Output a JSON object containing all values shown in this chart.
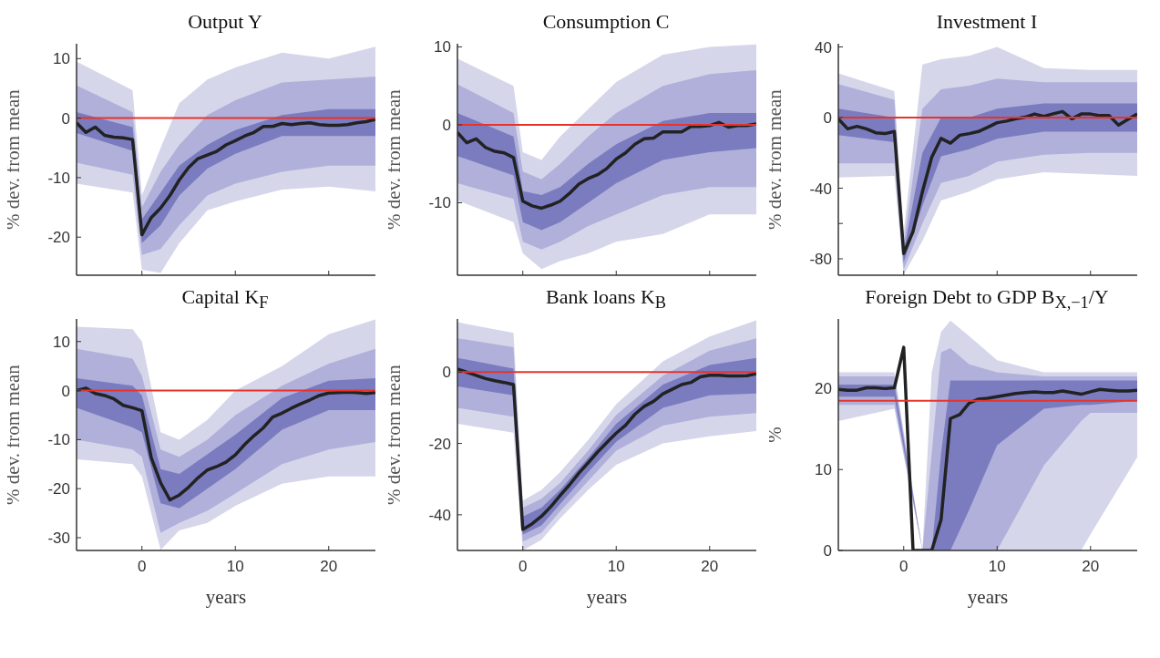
{
  "chart_data": [
    {
      "type": "line",
      "title": "Output Y",
      "ylabel": "% dev. from mean",
      "xlim": [
        -7,
        25
      ],
      "xticks": [
        0,
        10,
        20
      ],
      "ylim": [
        -26.4,
        12.5
      ],
      "yticks": [
        -20,
        -10,
        0,
        10
      ],
      "tick_labels": "y",
      "ref_lines": [
        {
          "axis": "y",
          "value": 0,
          "color": "#e8332a"
        }
      ],
      "x": [
        -7,
        -6,
        -5,
        -4,
        -3,
        -2,
        -1,
        0,
        1,
        2,
        3,
        4,
        5,
        6,
        7,
        8,
        9,
        10,
        11,
        12,
        13,
        14,
        15,
        16,
        17,
        18,
        19,
        20,
        21,
        22,
        23,
        24,
        25
      ],
      "series": [
        {
          "type": "area",
          "color": "#d6d6eb",
          "x": [
            -7,
            -1,
            0,
            2,
            4,
            7,
            10,
            15,
            20,
            25
          ],
          "values": [
            null,
            null,
            null,
            null,
            null,
            null,
            null,
            null,
            null,
            null
          ],
          "lower": [
            -11,
            -12.5,
            -25.5,
            -26,
            -21,
            -15.5,
            -14,
            -12,
            -11.5,
            -12.3
          ],
          "upper": [
            9.5,
            4.7,
            -13,
            -5,
            2.5,
            6.5,
            8.5,
            11,
            10,
            12
          ]
        },
        {
          "type": "area",
          "color": "#b0b0da",
          "x": [
            -7,
            -1,
            0,
            2,
            4,
            7,
            10,
            15,
            20,
            25
          ],
          "values": [
            null,
            null,
            null,
            null,
            null,
            null,
            null,
            null,
            null,
            null
          ],
          "lower": [
            -7.5,
            -9.5,
            -23,
            -22,
            -18,
            -13,
            -11,
            -9,
            -8,
            -8
          ],
          "upper": [
            5.5,
            1,
            -15,
            -9,
            -4.5,
            0.5,
            3,
            6,
            6.5,
            7
          ]
        },
        {
          "type": "area",
          "color": "#7a7cbf",
          "x": [
            -7,
            -1,
            0,
            2,
            4,
            7,
            10,
            15,
            20,
            25
          ],
          "values": [
            null,
            null,
            null,
            null,
            null,
            null,
            null,
            null,
            null,
            null
          ],
          "lower": [
            -2.5,
            -5.5,
            -21,
            -18,
            -13,
            -8.5,
            -6,
            -3,
            -3,
            -3
          ],
          "upper": [
            1,
            -1.5,
            -17,
            -12.5,
            -8,
            -4.5,
            -2,
            0.5,
            1.5,
            1.5
          ]
        },
        {
          "type": "line",
          "color": "#222222",
          "values": [
            -0.8,
            -2.4,
            -1.5,
            -2.9,
            -3.2,
            -3.3,
            -3.6,
            -19.6,
            -16.7,
            -15.1,
            -13,
            -10.4,
            -8.3,
            -6.8,
            -6.2,
            -5.6,
            -4.5,
            -3.8,
            -3,
            -2.4,
            -1.4,
            -1.4,
            -0.9,
            -1.1,
            -0.9,
            -0.8,
            -1.1,
            -1.2,
            -1.2,
            -1.1,
            -0.8,
            -0.6,
            -0.2
          ]
        }
      ]
    },
    {
      "type": "line",
      "title": "Consumption C",
      "ylabel": "% dev. from mean",
      "xlim": [
        -7,
        25
      ],
      "xticks": [
        0,
        10,
        20
      ],
      "ylim": [
        -19.3,
        10.4
      ],
      "yticks": [
        -10,
        0,
        10
      ],
      "tick_labels": "y",
      "ref_lines": [
        {
          "axis": "y",
          "value": 0,
          "color": "#e8332a"
        }
      ],
      "x": [
        -7,
        -6,
        -5,
        -4,
        -3,
        -2,
        -1,
        0,
        1,
        2,
        3,
        4,
        5,
        6,
        7,
        8,
        9,
        10,
        11,
        12,
        13,
        14,
        15,
        16,
        17,
        18,
        19,
        20,
        21,
        22,
        23,
        24,
        25
      ],
      "series": [
        {
          "type": "area",
          "color": "#d6d6eb",
          "x": [
            -7,
            -1,
            0,
            2,
            4,
            7,
            10,
            15,
            20,
            25
          ],
          "values": [
            null,
            null,
            null,
            null,
            null,
            null,
            null,
            null,
            null,
            null
          ],
          "lower": [
            -9.7,
            -12.5,
            -16.5,
            -18.5,
            -17.5,
            -16.5,
            -15,
            -14,
            -11.5,
            -11.5
          ],
          "upper": [
            8.5,
            5,
            -3.5,
            -4.5,
            -1.5,
            2,
            5.5,
            9,
            10,
            10.3
          ]
        },
        {
          "type": "area",
          "color": "#b0b0da",
          "x": [
            -7,
            -1,
            0,
            2,
            4,
            7,
            10,
            15,
            20,
            25
          ],
          "values": [
            null,
            null,
            null,
            null,
            null,
            null,
            null,
            null,
            null,
            null
          ],
          "lower": [
            -7.5,
            -9.5,
            -15,
            -16,
            -15,
            -13,
            -11.5,
            -9,
            -8,
            -8
          ],
          "upper": [
            5.2,
            1.5,
            -6,
            -7,
            -5,
            -1.5,
            1.5,
            5,
            6.5,
            7
          ]
        },
        {
          "type": "area",
          "color": "#7a7cbf",
          "x": [
            -7,
            -1,
            0,
            2,
            4,
            7,
            10,
            15,
            20,
            25
          ],
          "values": [
            null,
            null,
            null,
            null,
            null,
            null,
            null,
            null,
            null,
            null
          ],
          "lower": [
            -4,
            -6.5,
            -12.5,
            -13.5,
            -12.5,
            -10,
            -7.5,
            -4.5,
            -3.5,
            -3
          ],
          "upper": [
            1.5,
            -1.5,
            -8.5,
            -9,
            -8,
            -5,
            -2.5,
            0.5,
            1.5,
            1.5
          ]
        },
        {
          "type": "line",
          "color": "#222222",
          "values": [
            -1,
            -2.3,
            -1.8,
            -2.9,
            -3.4,
            -3.6,
            -4.2,
            -9.8,
            -10.4,
            -10.7,
            -10.3,
            -9.8,
            -8.8,
            -7.6,
            -6.9,
            -6.4,
            -5.6,
            -4.4,
            -3.6,
            -2.5,
            -1.8,
            -1.7,
            -0.9,
            -0.9,
            -0.9,
            -0.2,
            -0.2,
            -0.1,
            0.3,
            -0.3,
            -0.1,
            -0.1,
            0.1
          ]
        }
      ]
    },
    {
      "type": "line",
      "title": "Investment I",
      "ylabel": "% dev. from mean",
      "xlim": [
        -7,
        25
      ],
      "xticks": [
        0,
        10,
        20
      ],
      "ylim": [
        -89.3,
        41.8
      ],
      "yticks": [
        -80,
        {
          "value": -60,
          "label": null
        },
        -40,
        0,
        40
      ],
      "tick_labels": "y",
      "ref_lines": [
        {
          "axis": "y",
          "value": 0,
          "color": "#e8332a"
        }
      ],
      "x": [
        -7,
        -6,
        -5,
        -4,
        -3,
        -2,
        -1,
        0,
        1,
        2,
        3,
        4,
        5,
        6,
        7,
        8,
        9,
        10,
        11,
        12,
        13,
        14,
        15,
        16,
        17,
        18,
        19,
        20,
        21,
        22,
        23,
        24,
        25
      ],
      "series": [
        {
          "type": "area",
          "color": "#d6d6eb",
          "x": [
            -7,
            -1,
            0,
            2,
            4,
            7,
            10,
            15,
            20,
            25
          ],
          "values": [
            null,
            null,
            null,
            null,
            null,
            null,
            null,
            null,
            null,
            null
          ],
          "lower": [
            -34,
            -33,
            -89,
            -70,
            -47,
            -42,
            -35,
            -31,
            -32,
            -33
          ],
          "upper": [
            25,
            15,
            -65,
            30,
            33,
            35,
            40,
            28,
            27,
            27
          ]
        },
        {
          "type": "area",
          "color": "#b0b0da",
          "x": [
            -7,
            -1,
            0,
            2,
            4,
            7,
            10,
            15,
            20,
            25
          ],
          "values": [
            null,
            null,
            null,
            null,
            null,
            null,
            null,
            null,
            null,
            null
          ],
          "lower": [
            -26,
            -26,
            -86,
            -60,
            -37,
            -33,
            -25,
            -21,
            -20,
            -20
          ],
          "upper": [
            19,
            10,
            -72,
            5,
            16,
            18,
            22,
            20,
            20,
            20
          ]
        },
        {
          "type": "area",
          "color": "#7a7cbf",
          "x": [
            -7,
            -1,
            0,
            2,
            4,
            7,
            10,
            15,
            20,
            25
          ],
          "values": [
            null,
            null,
            null,
            null,
            null,
            null,
            null,
            null,
            null,
            null
          ],
          "lower": [
            -10,
            -14,
            -82,
            -50,
            -22,
            -18,
            -12,
            -8,
            -8,
            -8
          ],
          "upper": [
            5,
            0,
            -76,
            -20,
            0,
            0,
            5,
            8,
            8,
            8
          ]
        },
        {
          "type": "line",
          "color": "#222222",
          "values": [
            -0.7,
            -6.4,
            -5,
            -6.4,
            -8.6,
            -9.1,
            -7.9,
            -77,
            -64.5,
            -42,
            -22.5,
            -11.8,
            -14.5,
            -10,
            -9.1,
            -7.9,
            -5.5,
            -2.9,
            -2,
            -0.7,
            0.2,
            2,
            0.7,
            2.1,
            3.4,
            -0.7,
            2,
            2,
            1.1,
            1.1,
            -4.3,
            -1.1,
            2
          ]
        }
      ]
    },
    {
      "type": "line",
      "title": "Capital K$_{F}$",
      "xlabel": "years",
      "ylabel": "% dev. from mean",
      "xlim": [
        -7,
        25
      ],
      "xticks": [
        0,
        10,
        20
      ],
      "ylim": [
        -32.6,
        14.6
      ],
      "yticks": [
        -30,
        -20,
        -10,
        0,
        10
      ],
      "ref_lines": [
        {
          "axis": "y",
          "value": 0,
          "color": "#e8332a"
        }
      ],
      "x": [
        -7,
        -6,
        -5,
        -4,
        -3,
        -2,
        -1,
        0,
        1,
        2,
        3,
        4,
        5,
        6,
        7,
        8,
        9,
        10,
        11,
        12,
        13,
        14,
        15,
        16,
        17,
        18,
        19,
        20,
        21,
        22,
        23,
        24,
        25
      ],
      "series": [
        {
          "type": "area",
          "color": "#d6d6eb",
          "x": [
            -7,
            -1,
            0,
            2,
            4,
            7,
            10,
            15,
            20,
            25
          ],
          "values": [
            null,
            null,
            null,
            null,
            null,
            null,
            null,
            null,
            null,
            null
          ],
          "lower": [
            -14,
            -15,
            -17.5,
            -32.5,
            -28.5,
            -27,
            -23.5,
            -19,
            -17.5,
            -17.5
          ],
          "upper": [
            13,
            12.5,
            10,
            -8.5,
            -10,
            -6,
            0,
            5,
            11.5,
            14.5
          ]
        },
        {
          "type": "area",
          "color": "#b0b0da",
          "x": [
            -7,
            -1,
            0,
            2,
            4,
            7,
            10,
            15,
            20,
            25
          ],
          "values": [
            null,
            null,
            null,
            null,
            null,
            null,
            null,
            null,
            null,
            null
          ],
          "lower": [
            -10,
            -12,
            -13.5,
            -29,
            -27,
            -24.5,
            -21,
            -15,
            -12,
            -10.5
          ],
          "upper": [
            8.5,
            6.5,
            3,
            -12,
            -13.5,
            -10,
            -5,
            1,
            5.5,
            8.5
          ]
        },
        {
          "type": "area",
          "color": "#7a7cbf",
          "x": [
            -7,
            -1,
            0,
            2,
            4,
            7,
            10,
            15,
            20,
            25
          ],
          "values": [
            null,
            null,
            null,
            null,
            null,
            null,
            null,
            null,
            null,
            null
          ],
          "lower": [
            -3.5,
            -7.5,
            -8.5,
            -23,
            -24,
            -20,
            -16,
            -8,
            -4,
            -4
          ],
          "upper": [
            2.5,
            1,
            -1,
            -16,
            -17,
            -13,
            -9,
            -1.5,
            2,
            2.5
          ]
        },
        {
          "type": "line",
          "color": "#222222",
          "values": [
            0,
            0.5,
            -0.6,
            -1,
            -1.7,
            -3,
            -3.5,
            -4.1,
            -13.7,
            -18.8,
            -22.3,
            -21.3,
            -19.7,
            -17.8,
            -16.2,
            -15.5,
            -14.6,
            -13.1,
            -11,
            -9.2,
            -7.6,
            -5.4,
            -4.6,
            -3.6,
            -2.7,
            -1.9,
            -1,
            -0.5,
            -0.4,
            -0.3,
            -0.4,
            -0.6,
            -0.4
          ]
        }
      ]
    },
    {
      "type": "line",
      "title": "Bank loans K$_{B}$",
      "xlabel": "years",
      "ylabel": "% dev. from mean",
      "xlim": [
        -7,
        25
      ],
      "xticks": [
        0,
        10,
        20
      ],
      "ylim": [
        -50,
        14.9
      ],
      "yticks": [
        -40,
        -20,
        0
      ],
      "ref_lines": [
        {
          "axis": "y",
          "value": 0,
          "color": "#e8332a"
        }
      ],
      "x": [
        -7,
        -6,
        -5,
        -4,
        -3,
        -2,
        -1,
        0,
        1,
        2,
        3,
        4,
        5,
        6,
        7,
        8,
        9,
        10,
        11,
        12,
        13,
        14,
        15,
        16,
        17,
        18,
        19,
        20,
        21,
        22,
        23,
        24,
        25
      ],
      "series": [
        {
          "type": "area",
          "color": "#d6d6eb",
          "x": [
            -7,
            -1,
            0,
            2,
            4,
            7,
            10,
            15,
            20,
            25
          ],
          "values": [
            null,
            null,
            null,
            null,
            null,
            null,
            null,
            null,
            null,
            null
          ],
          "lower": [
            -14.5,
            -17,
            -50,
            -47,
            -41,
            -33,
            -26,
            -20,
            -18,
            -16.5
          ],
          "upper": [
            14,
            11,
            -36,
            -33,
            -28,
            -19,
            -9,
            3,
            10,
            14.5
          ]
        },
        {
          "type": "area",
          "color": "#b0b0da",
          "x": [
            -7,
            -1,
            0,
            2,
            4,
            7,
            10,
            15,
            20,
            25
          ],
          "values": [
            null,
            null,
            null,
            null,
            null,
            null,
            null,
            null,
            null,
            null
          ],
          "lower": [
            -10,
            -12.5,
            -47.5,
            -45,
            -39,
            -30.5,
            -22,
            -15,
            -12.5,
            -11.5
          ],
          "upper": [
            9.5,
            7,
            -38,
            -35.5,
            -31,
            -22,
            -12,
            -1,
            6,
            9.5
          ]
        },
        {
          "type": "area",
          "color": "#7a7cbf",
          "x": [
            -7,
            -1,
            0,
            2,
            4,
            7,
            10,
            15,
            20,
            25
          ],
          "values": [
            null,
            null,
            null,
            null,
            null,
            null,
            null,
            null,
            null,
            null
          ],
          "lower": [
            -4,
            -6.5,
            -45.5,
            -43,
            -37,
            -28,
            -19.5,
            -10,
            -6.5,
            -6
          ],
          "upper": [
            4,
            1,
            -40.5,
            -38,
            -33,
            -24,
            -14.5,
            -3.5,
            2,
            4
          ]
        },
        {
          "type": "line",
          "color": "#222222",
          "values": [
            0.9,
            0,
            -0.9,
            -1.8,
            -2.4,
            -2.9,
            -3.5,
            -44.1,
            -42.5,
            -40.4,
            -37.7,
            -34.6,
            -31.6,
            -28.3,
            -25.4,
            -22.4,
            -19.7,
            -17.1,
            -14.9,
            -11.8,
            -9.6,
            -8.2,
            -6.1,
            -4.8,
            -3.5,
            -2.9,
            -1.3,
            -0.9,
            -0.9,
            -1.1,
            -1.1,
            -1,
            -0.4
          ]
        }
      ]
    },
    {
      "type": "line",
      "title": "Foreign Debt to GDP B$_{X,−1}$/Y",
      "xlabel": "years",
      "ylabel": "%",
      "xlim": [
        -7,
        25
      ],
      "xticks": [
        0,
        10,
        20
      ],
      "ylim": [
        0,
        28.6
      ],
      "yticks": [
        0,
        10,
        20
      ],
      "ref_lines": [
        {
          "axis": "y",
          "value": 18.5,
          "color": "#e8332a"
        }
      ],
      "x": [
        -7,
        -6,
        -5,
        -4,
        -3,
        -2,
        -1,
        0,
        1,
        2,
        3,
        4,
        5,
        6,
        7,
        8,
        9,
        10,
        11,
        12,
        13,
        14,
        15,
        16,
        17,
        18,
        19,
        20,
        21,
        22,
        23,
        24,
        25
      ],
      "series": [
        {
          "type": "area",
          "color": "#d6d6eb",
          "x": [
            -7,
            -1,
            2,
            3,
            4,
            5,
            7,
            10,
            15,
            19,
            20,
            25
          ],
          "values": [
            null,
            null,
            null,
            null,
            null,
            null,
            null,
            null,
            null,
            null,
            null,
            null
          ],
          "lower": [
            16,
            17.5,
            0,
            0,
            0,
            0,
            0,
            0,
            0,
            0,
            2,
            11.5
          ],
          "upper": [
            22,
            22,
            0,
            22,
            27,
            28.4,
            26.5,
            23.5,
            22,
            22,
            22,
            22
          ]
        },
        {
          "type": "area",
          "color": "#b0b0da",
          "x": [
            -7,
            -1,
            2,
            3,
            4,
            5,
            7,
            10,
            15,
            19,
            20,
            25
          ],
          "values": [
            null,
            null,
            null,
            null,
            null,
            null,
            null,
            null,
            null,
            null,
            null,
            null
          ],
          "lower": [
            18,
            18,
            0,
            0,
            0,
            0,
            0,
            0,
            10.5,
            16,
            17,
            17
          ],
          "upper": [
            21.5,
            21.5,
            0,
            12,
            24.5,
            25,
            23,
            22,
            21.5,
            21.5,
            21.5,
            21.5
          ]
        },
        {
          "type": "area",
          "color": "#7a7cbf",
          "x": [
            -7,
            -1,
            2,
            3,
            4,
            5,
            7,
            10,
            15,
            19,
            20,
            25
          ],
          "values": [
            null,
            null,
            null,
            null,
            null,
            null,
            null,
            null,
            null,
            null,
            null,
            null
          ],
          "lower": [
            19,
            19,
            0,
            0,
            0,
            0,
            5,
            13,
            17.5,
            18,
            18,
            18.5
          ],
          "upper": [
            20.5,
            20.5,
            0,
            0,
            12,
            21,
            21,
            21,
            21,
            21,
            21,
            21
          ]
        },
        {
          "type": "line",
          "color": "#222222",
          "values": [
            19.9,
            19.8,
            19.8,
            20.1,
            20.1,
            20,
            20.1,
            25.1,
            0,
            0,
            0,
            3.8,
            16.3,
            16.8,
            18.2,
            18.7,
            18.8,
            19,
            19.2,
            19.4,
            19.5,
            19.6,
            19.5,
            19.5,
            19.7,
            19.5,
            19.3,
            19.6,
            19.9,
            19.8,
            19.7,
            19.7,
            19.8
          ]
        }
      ]
    }
  ]
}
